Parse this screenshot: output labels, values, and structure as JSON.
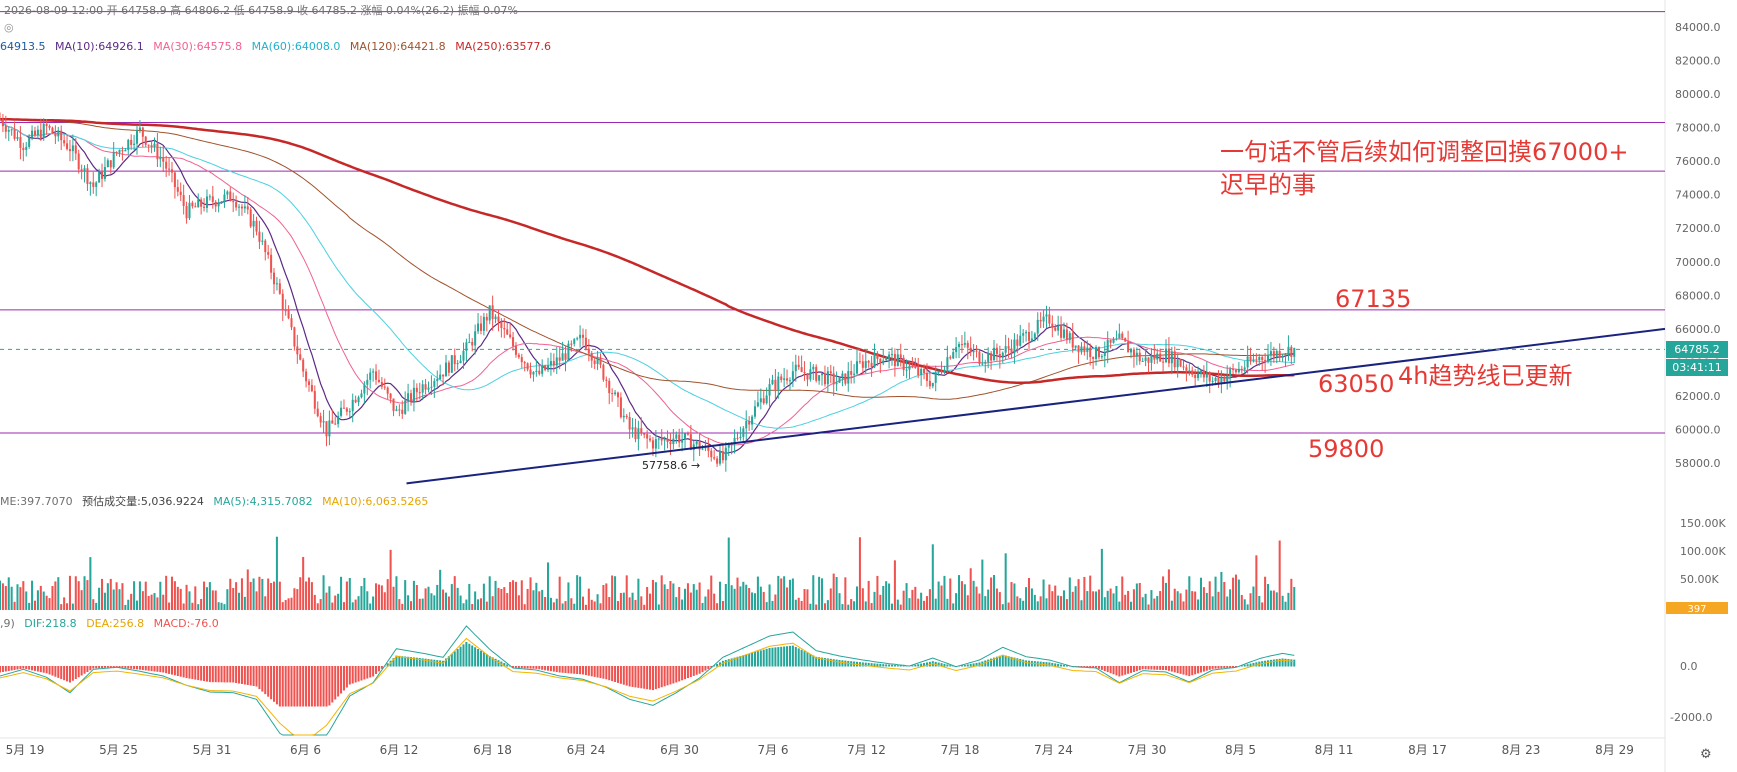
{
  "header": {
    "ohlc_line": "2026-08-09 12:00  开 64758.9  高 64806.2  低 64758.9  收 64785.2  涨幅 0.04%(26.2)  振幅 0.07%",
    "ma_line": {
      "ma5": "64913.5",
      "ma10": "MA(10):64926.1",
      "ma30": "MA(30):64575.8",
      "ma60": "MA(60):64008.0",
      "ma120": "MA(120):64421.8",
      "ma250": "MA(250):63577.6"
    },
    "vol_line": {
      "vol": "ME:397.7070",
      "est": "预估成交量:5,036.9224",
      "ma5": "MA(5):4,315.7082",
      "ma10": "MA(10):6,063.5265"
    },
    "macd_line": {
      "prefix": ",9)",
      "dif": "DIF:218.8",
      "dea": "DEA:256.8",
      "macd": "MACD:-76.0"
    }
  },
  "annotations": {
    "note_line1": "一句话不管后续如何调整回摸67000+",
    "note_line2": "迟早的事",
    "level_67135": "67135",
    "level_63050": "63050",
    "level_59800": "59800",
    "trendline_note": "4h趋势线已更新",
    "low_label": "57758.6 →"
  },
  "price_tag": {
    "price": "64785.2",
    "countdown": "03:41:11",
    "volume": "397"
  },
  "colors": {
    "up": "#26a69a",
    "down": "#ef5350",
    "hline": "#9c27b0",
    "trendline": "#1a237e",
    "ma10": "#5b2a86",
    "ma30": "#f06292",
    "ma60": "#4dd0e1",
    "ma120": "#a0522d",
    "ma250": "#c62828",
    "annotation": "#e53935",
    "dif": "#26a69a",
    "dea": "#f5b400"
  },
  "chart_data": {
    "type": "candlestick",
    "x_ticks": [
      "5月 19",
      "5月 25",
      "5月 31",
      "6月 6",
      "6月 12",
      "6月 18",
      "6月 24",
      "6月 30",
      "7月 6",
      "7月 12",
      "7月 18",
      "7月 24",
      "7月 30",
      "8月 5",
      "8月 11",
      "8月 17",
      "8月 23",
      "8月 29"
    ],
    "y_ticks": [
      "84000.0",
      "82000.0",
      "80000.0",
      "78000.0",
      "76000.0",
      "74000.0",
      "72000.0",
      "70000.0",
      "68000.0",
      "66000.0",
      "64000.0",
      "62000.0",
      "60000.0",
      "58000.0"
    ],
    "ylim": [
      57000,
      85000
    ],
    "horizontal_levels": [
      84900,
      78300,
      75400,
      67135,
      59800
    ],
    "current_price": 64785.2,
    "price_path": [
      [
        0,
        78500
      ],
      [
        2,
        77000
      ],
      [
        4,
        78000
      ],
      [
        6,
        76800
      ],
      [
        8,
        74500
      ],
      [
        10,
        76500
      ],
      [
        12,
        77800
      ],
      [
        14,
        76000
      ],
      [
        16,
        73000
      ],
      [
        18,
        73600
      ],
      [
        20,
        73900
      ],
      [
        22,
        72000
      ],
      [
        24,
        68000
      ],
      [
        26,
        63500
      ],
      [
        28,
        59900
      ],
      [
        30,
        61500
      ],
      [
        32,
        63500
      ],
      [
        34,
        61000
      ],
      [
        36,
        62500
      ],
      [
        38,
        63500
      ],
      [
        40,
        64800
      ],
      [
        42,
        67000
      ],
      [
        44,
        65000
      ],
      [
        46,
        63200
      ],
      [
        48,
        64200
      ],
      [
        50,
        65500
      ],
      [
        52,
        63000
      ],
      [
        54,
        60000
      ],
      [
        56,
        59200
      ],
      [
        58,
        59600
      ],
      [
        60,
        59000
      ],
      [
        62,
        58200
      ],
      [
        64,
        60500
      ],
      [
        66,
        62500
      ],
      [
        68,
        63500
      ],
      [
        70,
        63300
      ],
      [
        72,
        62800
      ],
      [
        74,
        64000
      ],
      [
        76,
        64400
      ],
      [
        78,
        63700
      ],
      [
        80,
        62800
      ],
      [
        82,
        65200
      ],
      [
        84,
        64300
      ],
      [
        86,
        64600
      ],
      [
        88,
        65600
      ],
      [
        90,
        66600
      ],
      [
        92,
        65200
      ],
      [
        94,
        64500
      ],
      [
        96,
        65300
      ],
      [
        98,
        64100
      ],
      [
        100,
        64500
      ],
      [
        102,
        63600
      ],
      [
        104,
        62900
      ],
      [
        106,
        63500
      ],
      [
        108,
        64300
      ],
      [
        110,
        64700
      ],
      [
        111,
        64785
      ]
    ],
    "ma_values": {
      "MA10": 64926.1,
      "MA30": 64575.8,
      "MA60": 64008.0,
      "MA120": 64421.8,
      "MA250": 63577.6
    },
    "volume": {
      "ticks": [
        "150.00K",
        "100.00K",
        "50.00K"
      ],
      "last": 397
    },
    "macd": {
      "ticks": [
        "0.0",
        "-2000.0"
      ],
      "DIF": 218.8,
      "DEA": 256.8,
      "MACD": -76.0
    },
    "trendline": [
      [
        22,
        56800
      ],
      [
        115,
        66000
      ]
    ]
  }
}
